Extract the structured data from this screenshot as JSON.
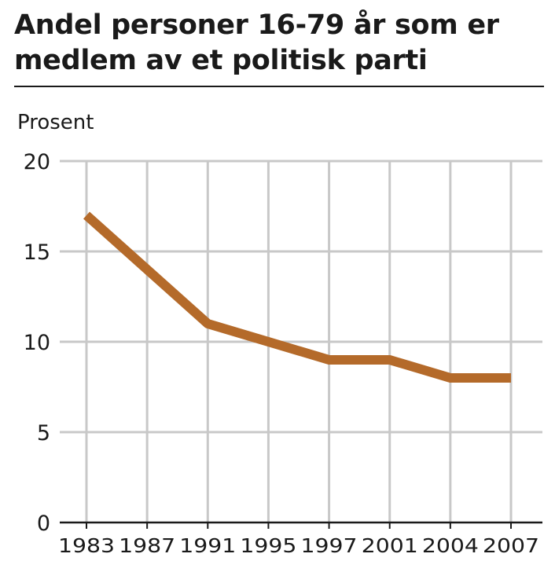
{
  "chart_data": {
    "type": "line",
    "title": "Andel personer 16-79 år som er medlem av et politisk parti",
    "ylabel": "Prosent",
    "xlabel": "",
    "categories": [
      "1983",
      "1987",
      "1991",
      "1995",
      "1997",
      "2001",
      "2004",
      "2007"
    ],
    "series": [
      {
        "values": [
          17,
          14,
          11,
          10,
          9,
          9,
          8,
          8
        ]
      }
    ],
    "ylim": [
      0,
      20
    ],
    "yticks": [
      0,
      5,
      10,
      15,
      20
    ],
    "grid": true,
    "legend": "none",
    "colors": {
      "line": "#b46a2a",
      "grid": "#c8c8c8",
      "axis": "#1a1a1a",
      "text": "#1a1a1a"
    }
  }
}
